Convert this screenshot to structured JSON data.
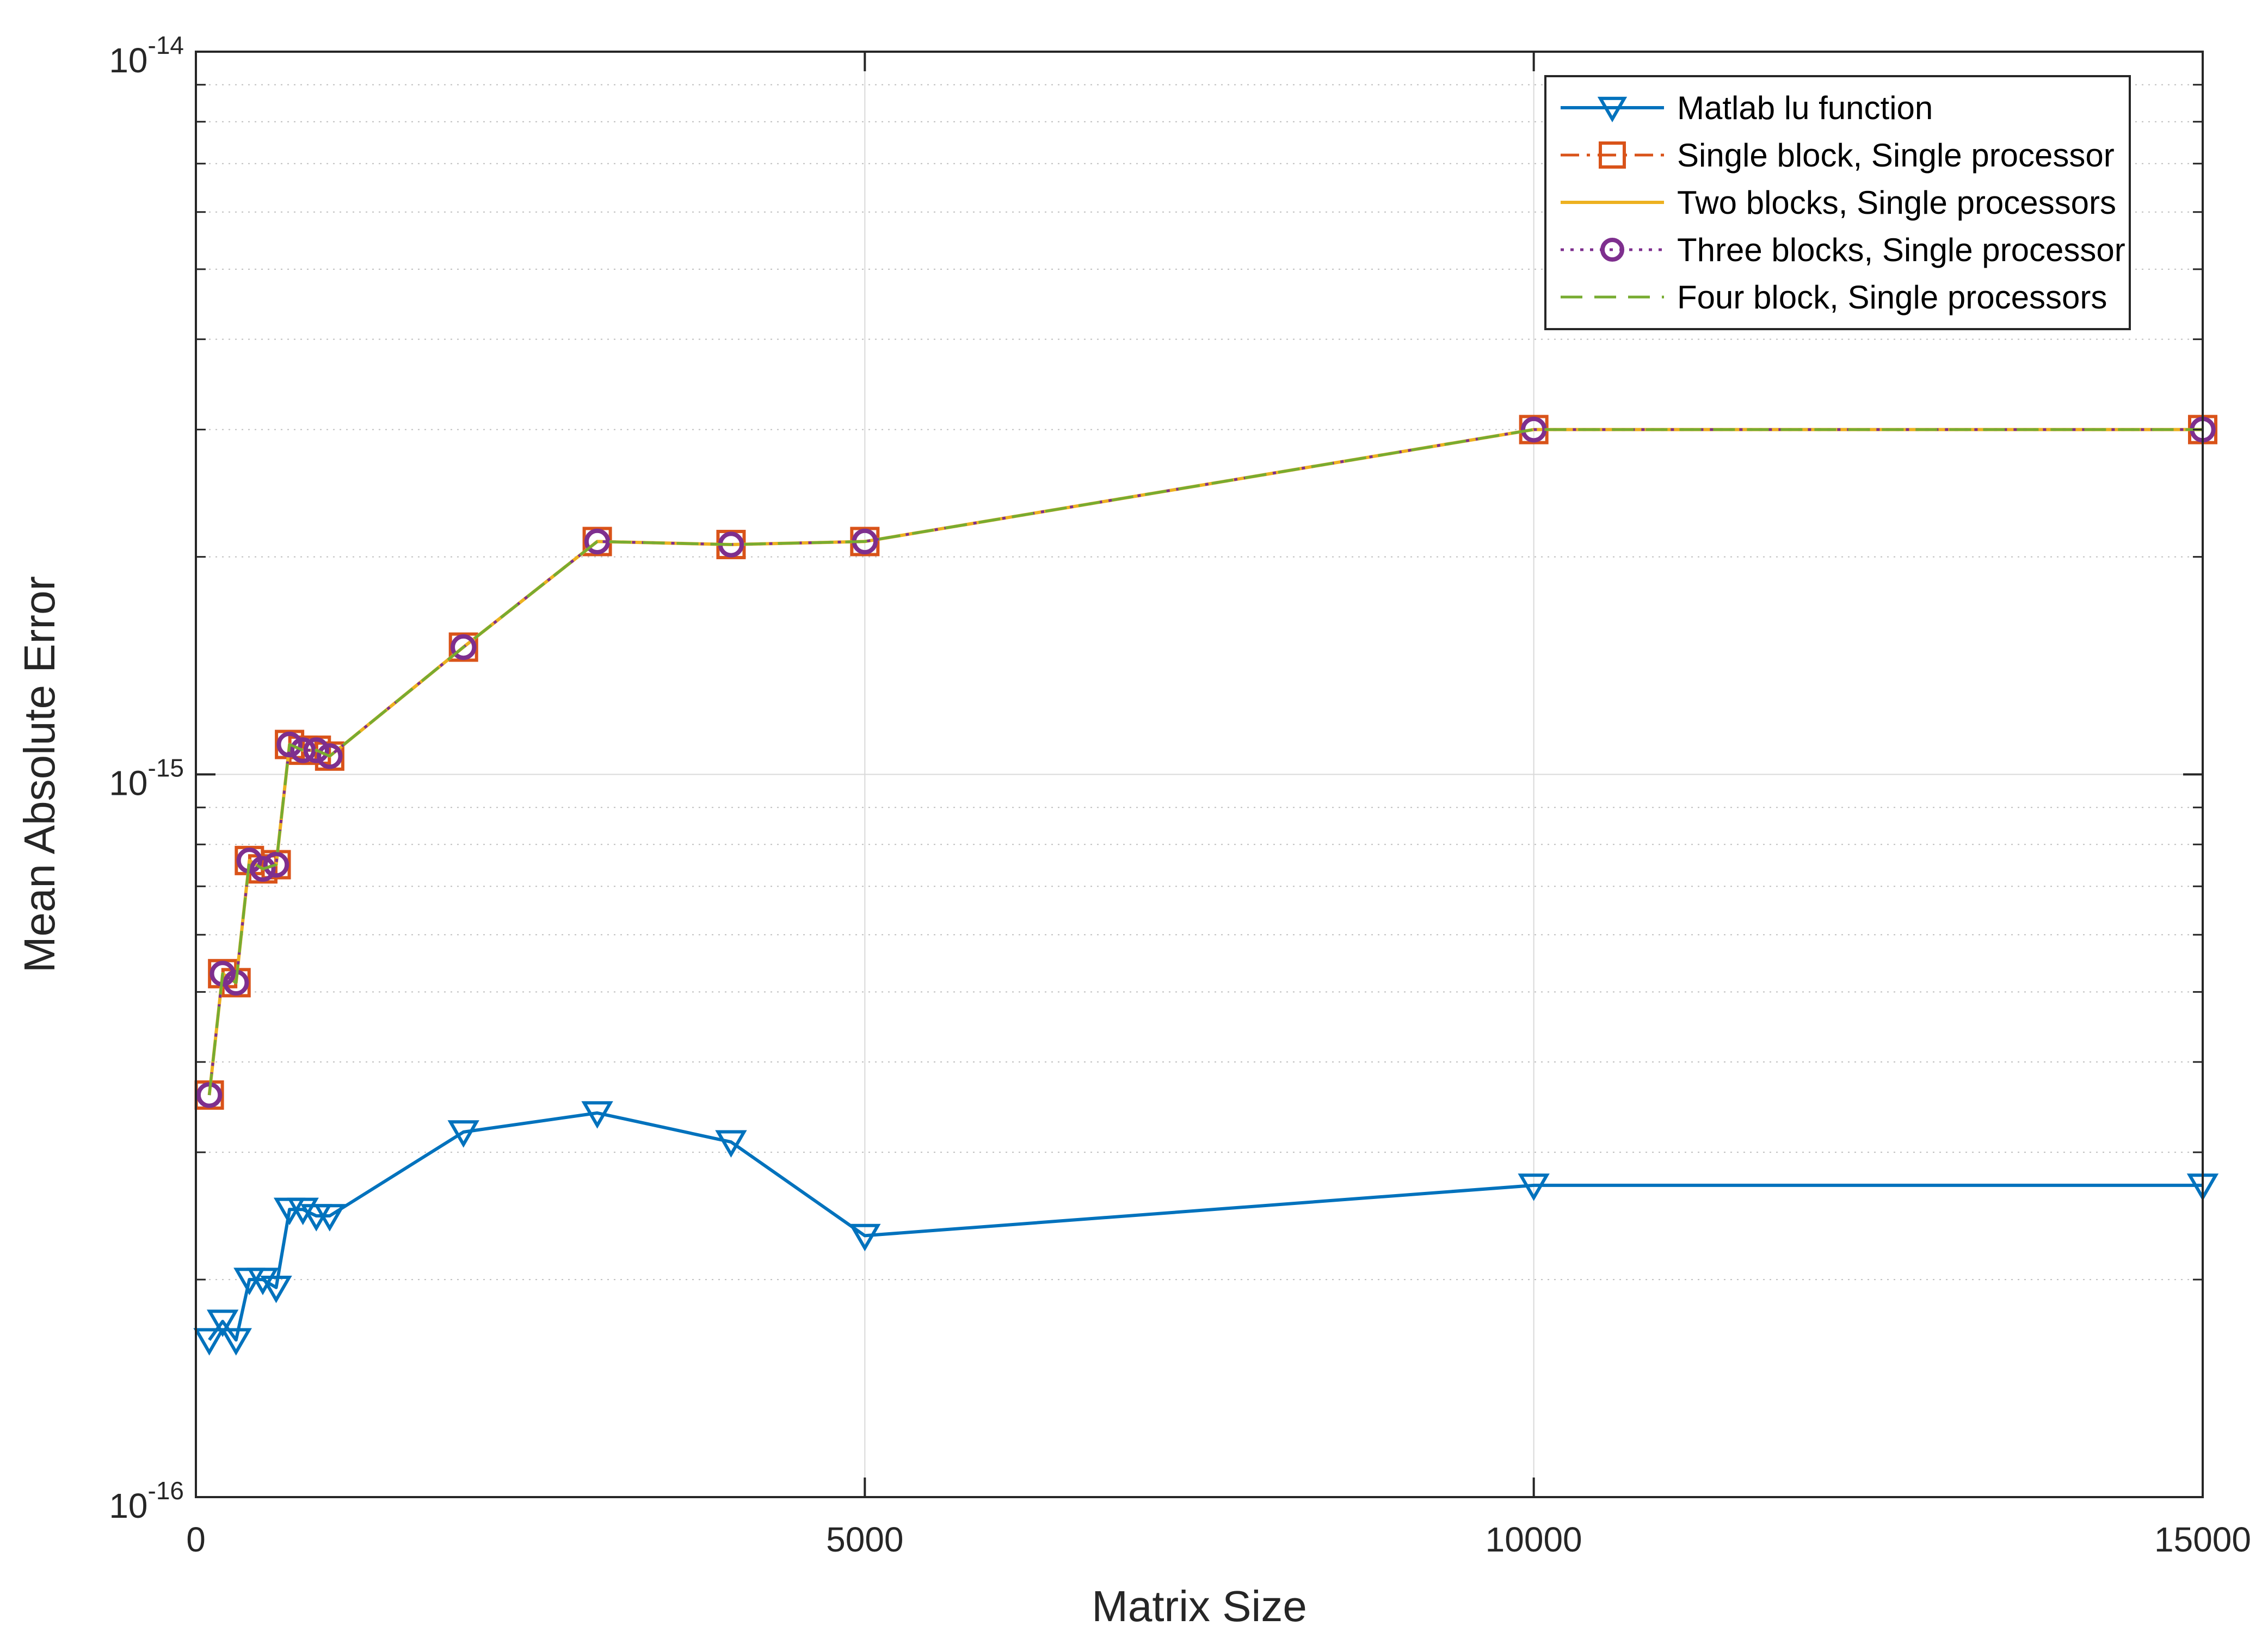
{
  "chart_data": {
    "type": "line",
    "title": "",
    "xlabel": "Matrix Size",
    "ylabel": "Mean Absolute Error",
    "xscale": "linear",
    "yscale": "log",
    "xlim": [
      0,
      15000
    ],
    "ylim": [
      1e-16,
      1e-14
    ],
    "grid": true,
    "legend_position": "top-right",
    "x_ticks": [
      {
        "value": 0,
        "label": "0"
      },
      {
        "value": 5000,
        "label": "5000"
      },
      {
        "value": 10000,
        "label": "10000"
      },
      {
        "value": 15000,
        "label": "15000"
      }
    ],
    "y_ticks": [
      {
        "value": 1e-16,
        "base": "10",
        "exp": "-16"
      },
      {
        "value": 1e-15,
        "base": "10",
        "exp": "-15"
      },
      {
        "value": 1e-14,
        "base": "10",
        "exp": "-14"
      }
    ],
    "x": [
      100,
      200,
      300,
      400,
      500,
      600,
      700,
      800,
      900,
      1000,
      2000,
      3000,
      4000,
      5000,
      10000,
      15000
    ],
    "series": [
      {
        "name": "Matlab lu function",
        "color": "#0072BD",
        "line": "solid",
        "marker": "triangle-down",
        "values": [
          1.65e-16,
          1.75e-16,
          1.65e-16,
          2e-16,
          2e-16,
          1.95e-16,
          2.5e-16,
          2.5e-16,
          2.45e-16,
          2.45e-16,
          3.2e-16,
          3.4e-16,
          3.1e-16,
          2.3e-16,
          2.7e-16,
          2.7e-16
        ]
      },
      {
        "name": "Single block, Single processor",
        "color": "#D95319",
        "line": "dashdot",
        "marker": "square",
        "values": [
          3.6e-16,
          5.3e-16,
          5.15e-16,
          7.6e-16,
          7.4e-16,
          7.5e-16,
          1.1e-15,
          1.08e-15,
          1.08e-15,
          1.06e-15,
          1.5e-15,
          2.1e-15,
          2.08e-15,
          2.1e-15,
          3e-15,
          3e-15
        ]
      },
      {
        "name": "Two blocks, Single processors",
        "color": "#EDB120",
        "line": "solid",
        "marker": "none",
        "values": [
          3.6e-16,
          5.3e-16,
          5.15e-16,
          7.6e-16,
          7.4e-16,
          7.5e-16,
          1.1e-15,
          1.08e-15,
          1.08e-15,
          1.06e-15,
          1.5e-15,
          2.1e-15,
          2.08e-15,
          2.1e-15,
          3e-15,
          3e-15
        ]
      },
      {
        "name": "Three blocks, Single processor",
        "color": "#7E2F8E",
        "line": "dotted",
        "marker": "circle",
        "values": [
          3.6e-16,
          5.3e-16,
          5.15e-16,
          7.6e-16,
          7.4e-16,
          7.5e-16,
          1.1e-15,
          1.08e-15,
          1.08e-15,
          1.06e-15,
          1.5e-15,
          2.1e-15,
          2.08e-15,
          2.1e-15,
          3e-15,
          3e-15
        ]
      },
      {
        "name": "Four block, Single processors",
        "color": "#77AC30",
        "line": "dashed",
        "marker": "none",
        "values": [
          3.6e-16,
          5.3e-16,
          5.15e-16,
          7.6e-16,
          7.4e-16,
          7.5e-16,
          1.1e-15,
          1.08e-15,
          1.08e-15,
          1.06e-15,
          1.5e-15,
          2.1e-15,
          2.08e-15,
          2.1e-15,
          3e-15,
          3e-15
        ]
      }
    ]
  }
}
